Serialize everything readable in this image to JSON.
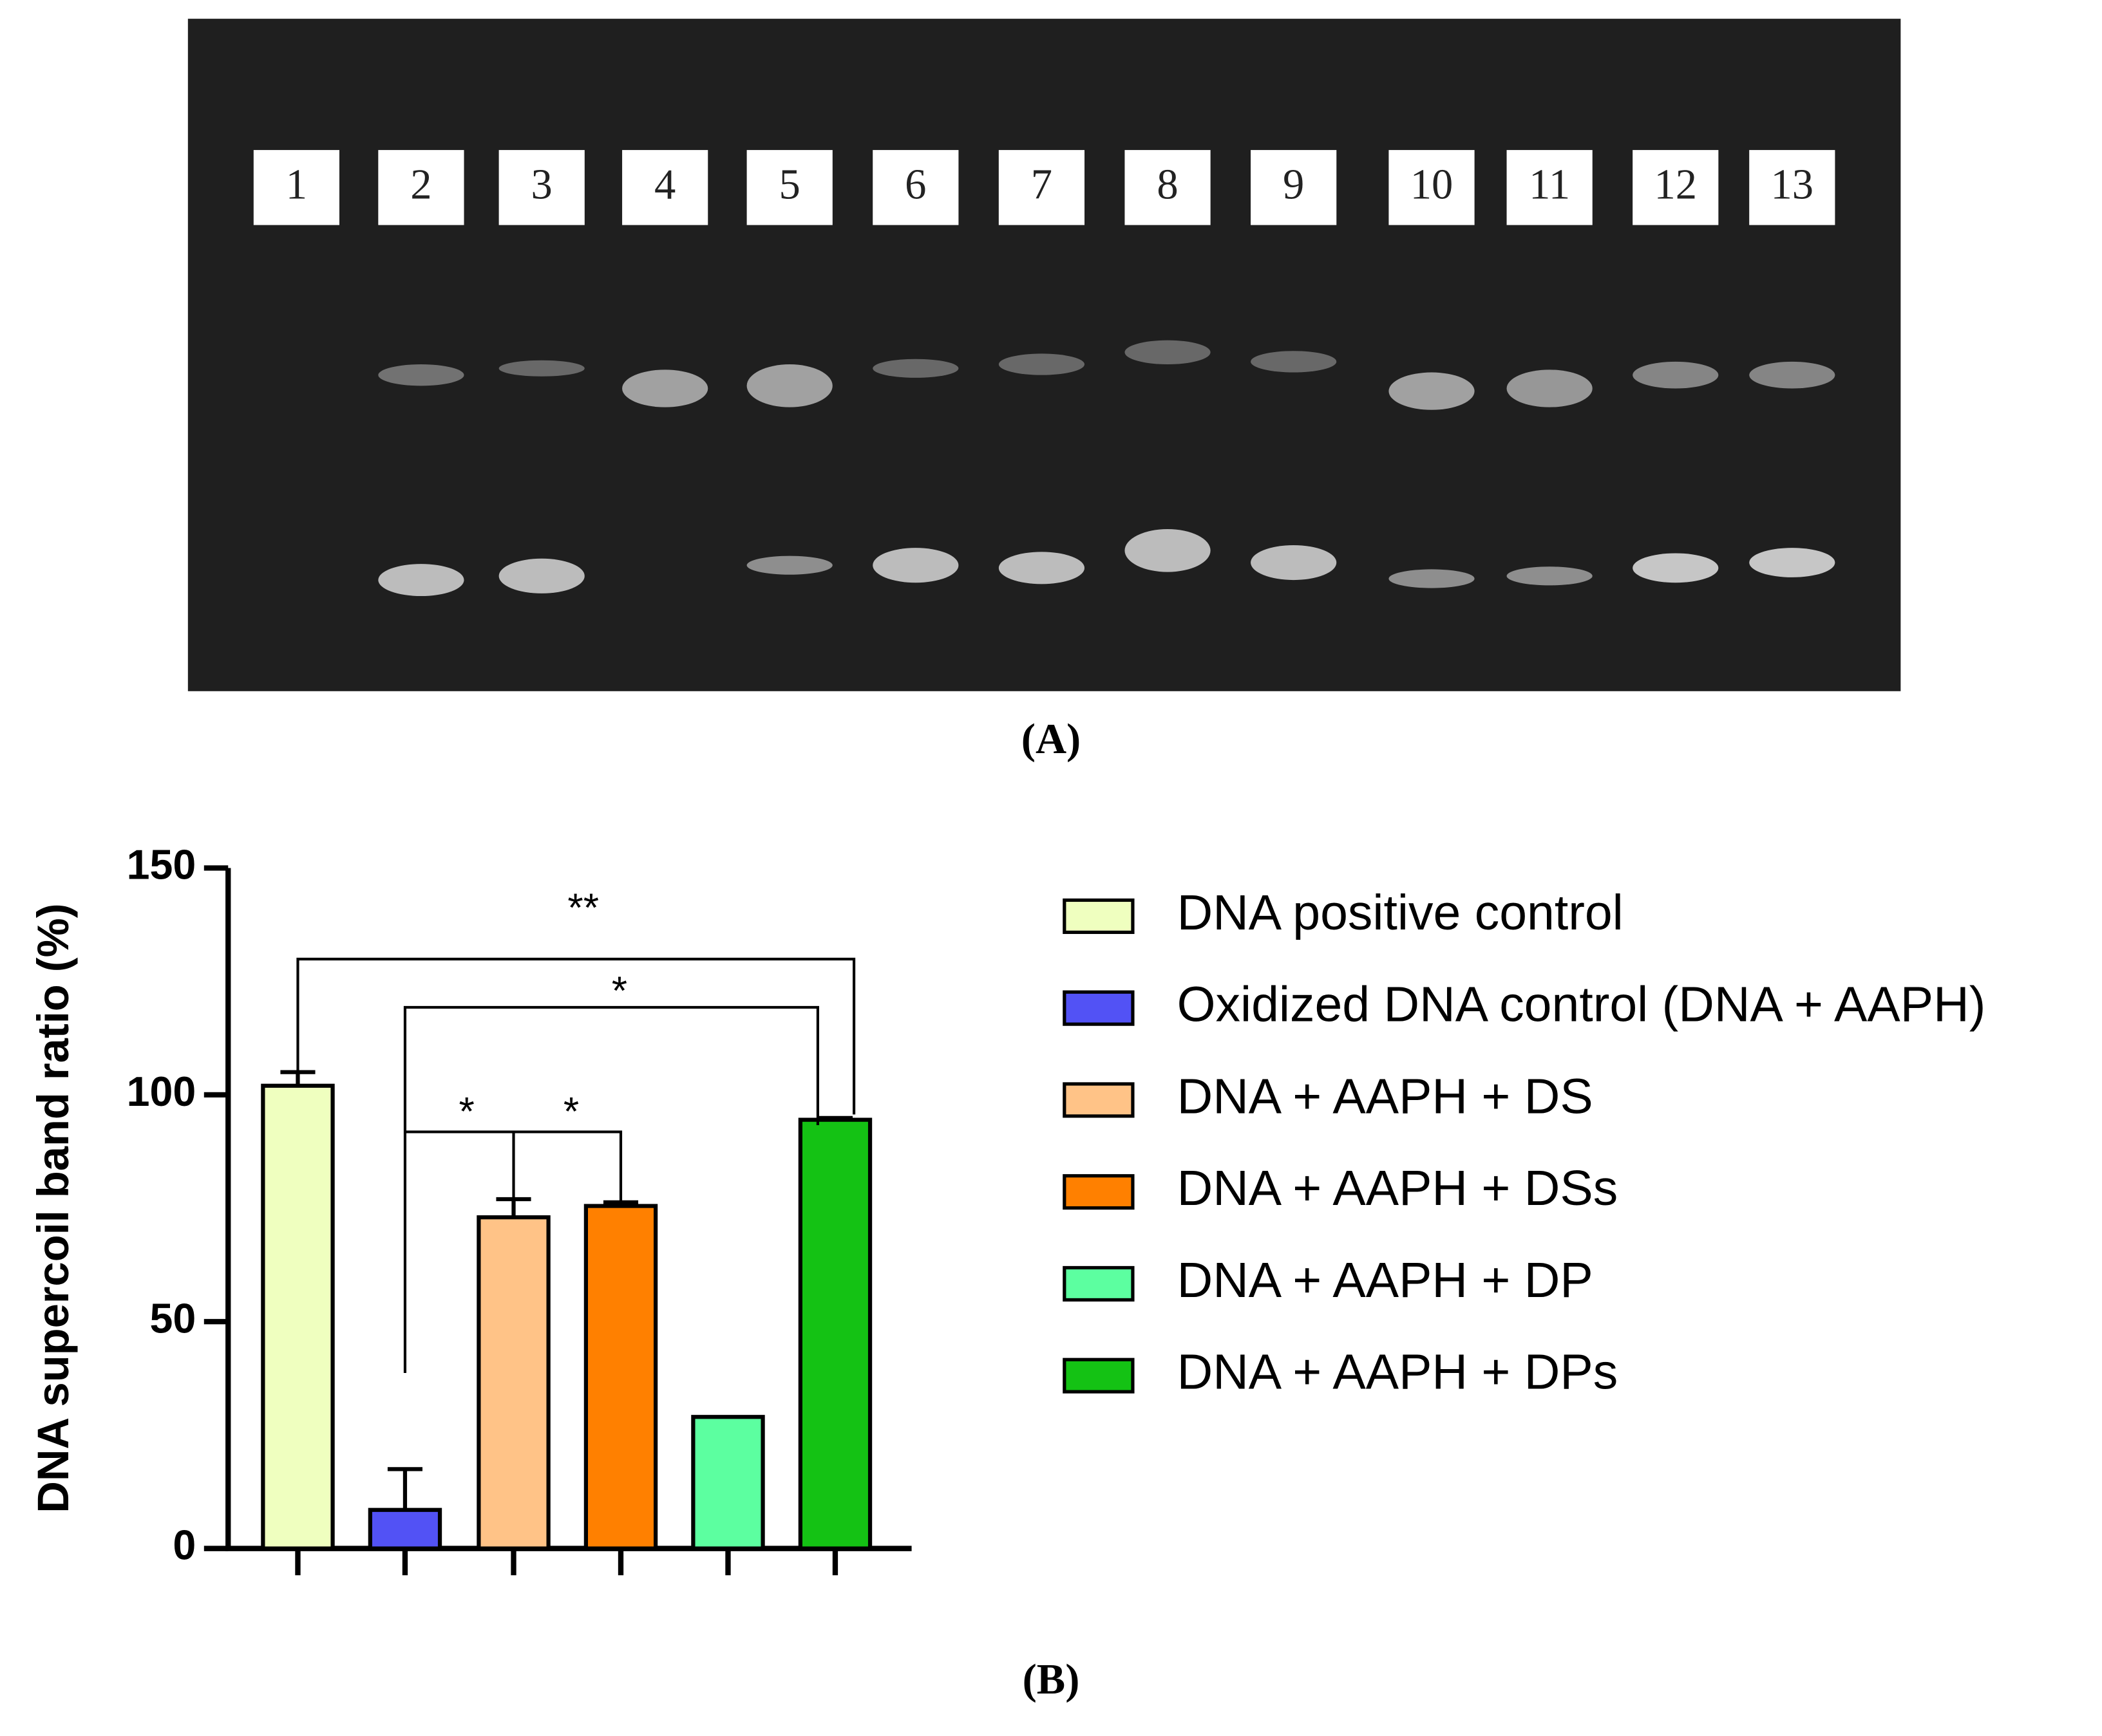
{
  "gel": {
    "lane_labels": [
      "1",
      "2",
      "3",
      "4",
      "5",
      "6",
      "7",
      "8",
      "9",
      "10",
      "11",
      "12",
      "13"
    ]
  },
  "panel_labels": [
    "(A)",
    "(B)"
  ],
  "chart_data": {
    "type": "bar",
    "ylabel": "DNA supercoil band ratio (%)",
    "categories": [
      "DNA positive control",
      "Oxidized DNA control (DNA + AAPH)",
      "DNA + AAPH + DS",
      "DNA + AAPH + DSs",
      "DNA + AAPH + DP",
      "DNA + AAPH + DPs"
    ],
    "values": [
      102,
      8.5,
      73,
      75.5,
      29,
      94.5
    ],
    "errors": [
      3,
      9,
      4,
      0.8,
      null,
      0.4
    ],
    "colors": [
      "#efffbf",
      "#5252f5",
      "#ffc387",
      "#ff8000",
      "#5cffa0",
      "#14c214"
    ],
    "ylim": [
      0,
      150
    ],
    "yticks": [
      0,
      50,
      100,
      150
    ],
    "annotations": [
      "**",
      "*",
      "*",
      "*"
    ],
    "legend": "right"
  }
}
